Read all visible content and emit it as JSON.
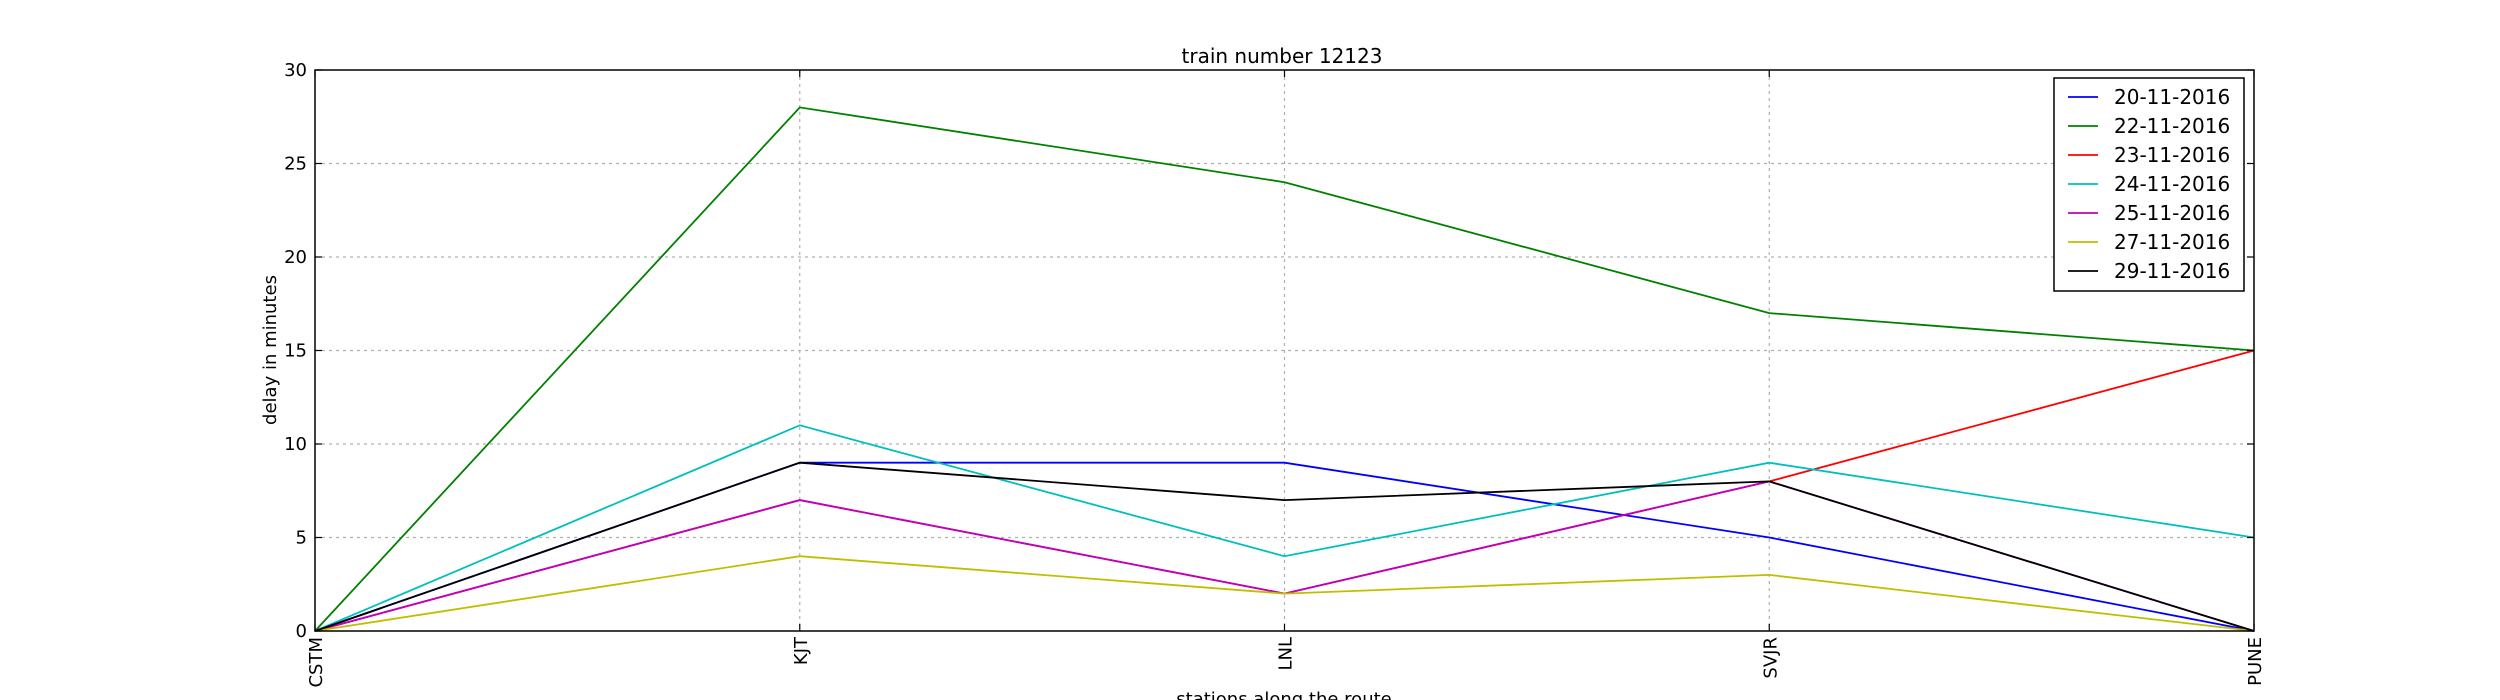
{
  "chart_data": {
    "type": "line",
    "title": "train number 12123",
    "xlabel": "stations along the route",
    "ylabel": "delay in minutes",
    "categories": [
      "CSTM",
      "KJT",
      "LNL",
      "SVJR",
      "PUNE"
    ],
    "ylim": [
      0,
      30
    ],
    "yticks": [
      0,
      5,
      10,
      15,
      20,
      25,
      30
    ],
    "grid": true,
    "legend_position": "top-right",
    "series": [
      {
        "name": "20-11-2016",
        "color": "#0000ff",
        "values": [
          0,
          9,
          9,
          5,
          0
        ]
      },
      {
        "name": "22-11-2016",
        "color": "#008000",
        "values": [
          0,
          28,
          24,
          17,
          15
        ]
      },
      {
        "name": "23-11-2016",
        "color": "#ff0000",
        "values": [
          0,
          7,
          2,
          8,
          15
        ]
      },
      {
        "name": "24-11-2016",
        "color": "#00bfbf",
        "values": [
          0,
          11,
          4,
          9,
          5
        ]
      },
      {
        "name": "25-11-2016",
        "color": "#bf00bf",
        "values": [
          0,
          7,
          2,
          8,
          0
        ]
      },
      {
        "name": "27-11-2016",
        "color": "#bfbf00",
        "values": [
          0,
          4,
          2,
          3,
          0
        ]
      },
      {
        "name": "29-11-2016",
        "color": "#000000",
        "values": [
          0,
          9,
          7,
          8,
          0
        ]
      }
    ]
  }
}
